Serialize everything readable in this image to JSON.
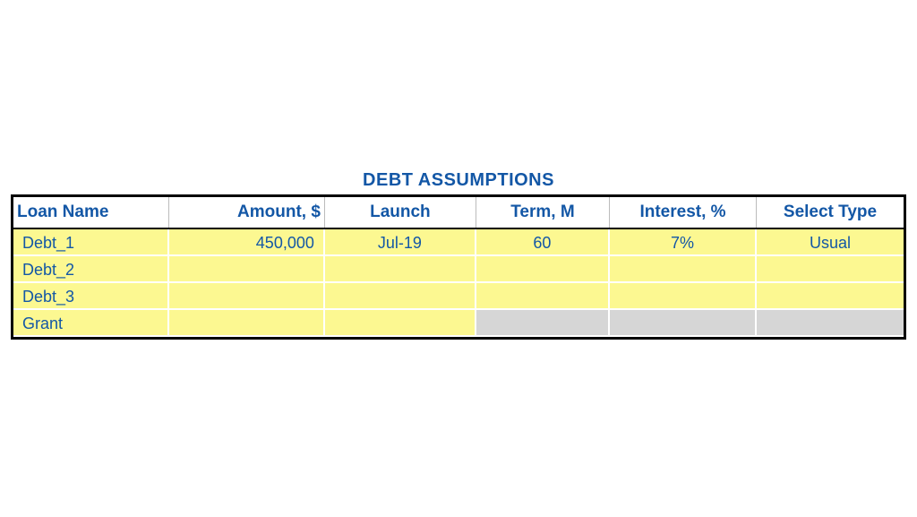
{
  "title": "DEBT ASSUMPTIONS",
  "colors": {
    "header_text": "#1357a6",
    "data_text": "#1357a6",
    "yellow_bg": "#fcf891",
    "grey_bg": "#d6d6d6",
    "white_bg": "#ffffff",
    "border": "#000000"
  },
  "table": {
    "columns": [
      "Loan Name",
      "Amount, $",
      "Launch",
      "Term, M",
      "Interest, %",
      "Select Type"
    ],
    "rows": [
      {
        "name": "Debt_1",
        "amount": "450,000",
        "launch": "Jul-19",
        "term": "60",
        "interest": "7%",
        "type": "Usual",
        "cell_bg": [
          "yellow",
          "yellow",
          "yellow",
          "yellow",
          "yellow",
          "yellow"
        ]
      },
      {
        "name": "Debt_2",
        "amount": "",
        "launch": "",
        "term": "",
        "interest": "",
        "type": "",
        "cell_bg": [
          "yellow",
          "yellow",
          "yellow",
          "yellow",
          "yellow",
          "yellow"
        ]
      },
      {
        "name": "Debt_3",
        "amount": "",
        "launch": "",
        "term": "",
        "interest": "",
        "type": "",
        "cell_bg": [
          "yellow",
          "yellow",
          "yellow",
          "yellow",
          "yellow",
          "yellow"
        ]
      },
      {
        "name": "Grant",
        "amount": "",
        "launch": "",
        "term": "",
        "interest": "",
        "type": "",
        "cell_bg": [
          "yellow",
          "yellow",
          "yellow",
          "grey",
          "grey",
          "grey"
        ]
      }
    ]
  }
}
